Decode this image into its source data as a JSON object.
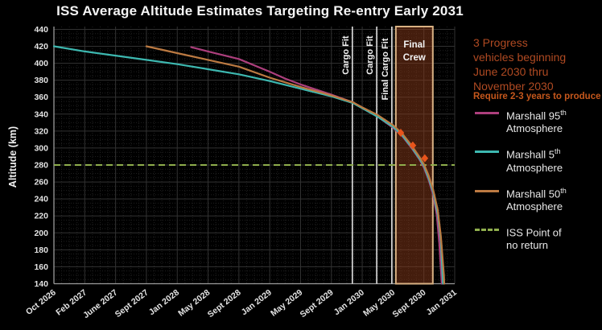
{
  "title": "ISS Average Altitude Estimates Targeting Re-entry Early 2031",
  "colors": {
    "background": "#000000",
    "title_text": "#f5f5f5",
    "axis_text": "#e3e3e3",
    "grid_major": "#323232",
    "grid_minor": "#1f1f1f",
    "spine": "#9a9a9a",
    "event_line": "#efefef",
    "band_fill": "#88391a",
    "band_border": "#d9b183",
    "marker": "#e8541c",
    "note_progress": "#b04a22",
    "note_produce": "#c5571c",
    "series_95th": "#ad3f7d",
    "series_5th": "#3db8b0",
    "series_50th": "#bc7a42",
    "reference_green": "#8fae4d"
  },
  "annotations": {
    "progress_note": "3 Progress\nvehicles beginning\nJune 2030 thru\nNovember 2030",
    "produce_note": "Require 2-3 years to produce"
  },
  "legend": {
    "entries": [
      {
        "line1": "Marshall 95",
        "sup": "th",
        "line2": "Atmosphere",
        "color": "#ad3f7d",
        "dashed": false
      },
      {
        "line1": "Marshall 5",
        "sup": "th",
        "line2": "Atmosphere",
        "color": "#3db8b0",
        "dashed": false
      },
      {
        "line1": "Marshall 50",
        "sup": "th",
        "line2": "Atmosphere",
        "color": "#bc7a42",
        "dashed": false
      },
      {
        "line1": "ISS Point of",
        "sup": "",
        "line2": "no return",
        "color": "#8fae4d",
        "dashed": true
      }
    ]
  },
  "chart_data": {
    "type": "line",
    "title": "ISS Average Altitude Estimates Targeting Re-entry Early 2031",
    "xlabel": "",
    "ylabel": "Altitude (km)",
    "ylim": [
      140,
      440
    ],
    "ytick_step": 20,
    "grid": true,
    "legend_position": "right-outside",
    "x_unit": "tick index, labels evenly spaced",
    "x_tick_labels": [
      "Oct 2026",
      "Feb 2027",
      "June 2027",
      "Sept 2027",
      "Jan 2028",
      "May 2028",
      "Sept 2028",
      "Jan 2029",
      "May 2029",
      "Sept 2029",
      "Jan 2030",
      "May 2030",
      "Sept 2030",
      "Jan 2031"
    ],
    "series": [
      {
        "name": "Marshall 95th Atmosphere",
        "color": "#ad3f7d",
        "points": [
          [
            4.45,
            419
          ],
          [
            5,
            414
          ],
          [
            6,
            405
          ],
          [
            7,
            390
          ],
          [
            7.5,
            382
          ],
          [
            8,
            375
          ],
          [
            9,
            363
          ],
          [
            9.7,
            354
          ],
          [
            10,
            347
          ],
          [
            10.5,
            337
          ],
          [
            11,
            324
          ],
          [
            11.3,
            314
          ],
          [
            11.6,
            300
          ],
          [
            11.85,
            287
          ],
          [
            12.0,
            277
          ],
          [
            12.15,
            263
          ],
          [
            12.3,
            245
          ],
          [
            12.42,
            220
          ],
          [
            12.5,
            188
          ],
          [
            12.58,
            140
          ]
        ]
      },
      {
        "name": "Marshall 5th Atmosphere",
        "color": "#3db8b0",
        "points": [
          [
            0,
            420
          ],
          [
            1,
            414
          ],
          [
            2,
            409
          ],
          [
            3,
            404
          ],
          [
            4,
            399
          ],
          [
            5,
            393
          ],
          [
            6,
            387
          ],
          [
            7,
            379
          ],
          [
            8,
            370
          ],
          [
            9,
            361
          ],
          [
            9.7,
            353
          ],
          [
            10,
            347
          ],
          [
            10.5,
            337
          ],
          [
            11,
            325
          ],
          [
            11.3,
            315
          ],
          [
            11.6,
            301
          ],
          [
            11.85,
            288
          ],
          [
            12.0,
            279
          ],
          [
            12.15,
            265
          ],
          [
            12.3,
            248
          ],
          [
            12.45,
            222
          ],
          [
            12.55,
            190
          ],
          [
            12.62,
            140
          ]
        ]
      },
      {
        "name": "Marshall 50th Atmosphere",
        "color": "#bc7a42",
        "points": [
          [
            3,
            420
          ],
          [
            4,
            412
          ],
          [
            5,
            404
          ],
          [
            6,
            396
          ],
          [
            7,
            383
          ],
          [
            8,
            372
          ],
          [
            9,
            362
          ],
          [
            9.7,
            354
          ],
          [
            10,
            348
          ],
          [
            10.5,
            339
          ],
          [
            11,
            327
          ],
          [
            11.3,
            317
          ],
          [
            11.6,
            303
          ],
          [
            11.85,
            290
          ],
          [
            12.0,
            281
          ],
          [
            12.15,
            268
          ],
          [
            12.3,
            251
          ],
          [
            12.45,
            227
          ],
          [
            12.55,
            196
          ],
          [
            12.65,
            150
          ],
          [
            12.66,
            140
          ]
        ]
      }
    ],
    "reference_line": {
      "name": "ISS Point of no return",
      "value": 280,
      "color": "#8fae4d",
      "style": "dashed"
    },
    "event_lines": [
      {
        "label": "Cargo Fit",
        "x": 9.68
      },
      {
        "label": "Cargo Fit",
        "x": 10.47
      },
      {
        "label": "Final Cargo Fit",
        "x": 10.96
      }
    ],
    "event_band": {
      "label": "Final Crew",
      "x_start": 11.09,
      "x_end": 12.29
    },
    "markers": {
      "name": "Progress vehicle deorbit burns",
      "shape": "diamond",
      "color": "#e8541c",
      "points": [
        [
          11.25,
          318
        ],
        [
          11.64,
          303
        ],
        [
          12.03,
          288
        ]
      ]
    }
  }
}
